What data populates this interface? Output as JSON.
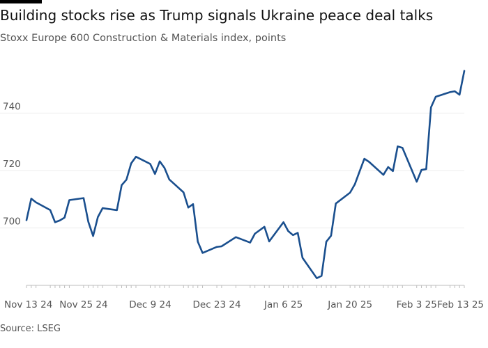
{
  "title": "Building stocks rise as Trump signals Ukraine peace deal talks",
  "subtitle": "Stoxx Europe 600 Construction & Materials index, points",
  "source": "Source: LSEG",
  "colors": {
    "line": "#1a4f8e",
    "grid": "#ececec",
    "axis": "#bdbdbd",
    "text": "#555555"
  },
  "chart_data": {
    "type": "line",
    "title": "Building stocks rise as Trump signals Ukraine peace deal talks",
    "subtitle": "Stoxx Europe 600 Construction & Materials index, points",
    "ylim": [
      680,
      760
    ],
    "grid": true,
    "yticks": [
      700,
      720,
      740
    ],
    "xticks": [
      "Nov 13 24",
      "Nov 25 24",
      "Dec 9 24",
      "Dec 23 24",
      "Jan 6 25",
      "Jan 20 25",
      "Feb 3 25",
      "Feb 13 25"
    ],
    "x": [
      "2024-11-13",
      "2024-11-14",
      "2024-11-15",
      "2024-11-18",
      "2024-11-19",
      "2024-11-20",
      "2024-11-21",
      "2024-11-22",
      "2024-11-25",
      "2024-11-26",
      "2024-11-27",
      "2024-11-28",
      "2024-11-29",
      "2024-12-02",
      "2024-12-03",
      "2024-12-04",
      "2024-12-05",
      "2024-12-06",
      "2024-12-09",
      "2024-12-10",
      "2024-12-11",
      "2024-12-12",
      "2024-12-13",
      "2024-12-16",
      "2024-12-17",
      "2024-12-18",
      "2024-12-19",
      "2024-12-20",
      "2024-12-23",
      "2024-12-24",
      "2024-12-27",
      "2024-12-30",
      "2024-12-31",
      "2025-01-02",
      "2025-01-03",
      "2025-01-06",
      "2025-01-07",
      "2025-01-08",
      "2025-01-09",
      "2025-01-10",
      "2025-01-13",
      "2025-01-14",
      "2025-01-15",
      "2025-01-16",
      "2025-01-17",
      "2025-01-20",
      "2025-01-21",
      "2025-01-22",
      "2025-01-23",
      "2025-01-24",
      "2025-01-27",
      "2025-01-28",
      "2025-01-29",
      "2025-01-30",
      "2025-01-31",
      "2025-02-03",
      "2025-02-04",
      "2025-02-05",
      "2025-02-06",
      "2025-02-07",
      "2025-02-10",
      "2025-02-11",
      "2025-02-12",
      "2025-02-13"
    ],
    "series": [
      {
        "values": [
          702.7,
          710.2,
          708.9,
          706.2,
          702.0,
          702.6,
          703.6,
          709.7,
          710.4,
          702.1,
          697.2,
          703.8,
          706.9,
          706.2,
          714.9,
          716.8,
          722.5,
          724.8,
          722.3,
          718.8,
          723.2,
          720.9,
          716.9,
          712.4,
          707.1,
          708.3,
          695.2,
          691.3,
          693.4,
          693.6,
          696.8,
          694.9,
          698.0,
          700.4,
          695.3,
          702.0,
          698.9,
          697.5,
          698.3,
          689.6,
          682.5,
          683.3,
          695.2,
          697.3,
          708.5,
          712.3,
          715.2,
          719.7,
          724.1,
          723.0,
          718.5,
          721.2,
          719.8,
          728.4,
          727.9,
          716.1,
          720.2,
          720.5,
          742.0,
          745.7,
          747.3,
          747.6,
          746.4,
          754.7
        ]
      }
    ]
  }
}
